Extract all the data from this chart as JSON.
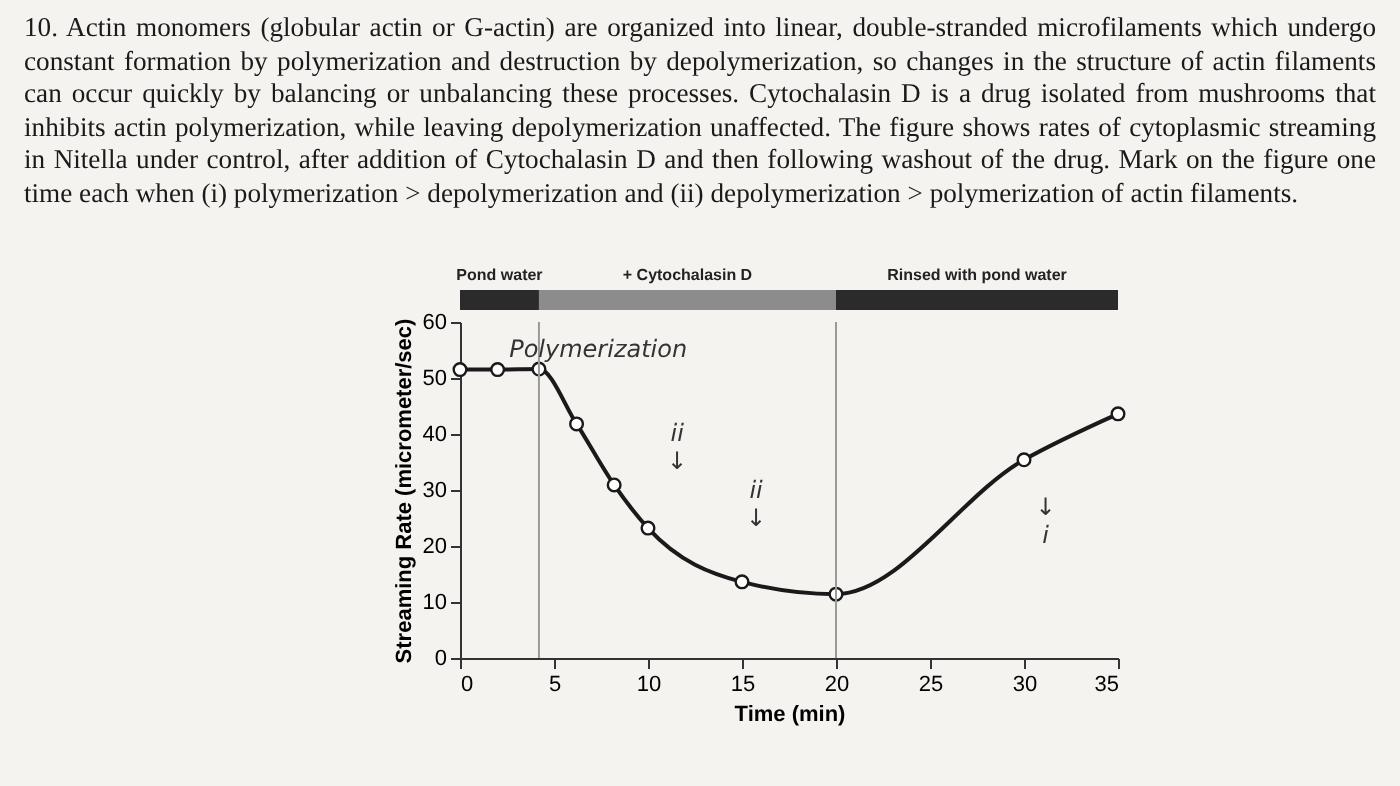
{
  "chart_data": {
    "type": "line",
    "title": "10. Actin monomers (globular actin or G-actin) are organized into linear, double-stranded microfilaments which undergo constant formation by polymerization and destruction by depolymerization, so changes in the structure of actin filaments can occur quickly by balancing or unbalancing these processes. Cytochalasin D is a drug isolated from mushrooms that inhibits actin polymerization, while leaving depolymerization unaffected. The figure shows rates of cytoplasmic streaming in Nitella under control, after addition of Cytochalasin D and then following washout of the drug. Mark on the figure one time each when (i) polymerization > depolymerization and (ii) depolymerization > polymerization of actin filaments.",
    "xlabel": "Time (min)",
    "ylabel": "Streaming Rate (micrometer/sec)",
    "x": [
      0,
      2,
      4.2,
      6.2,
      8.2,
      10,
      15,
      20,
      30,
      35
    ],
    "series": [
      {
        "color": "#1a1a1a",
        "values": [
          51.5,
          51.5,
          51.6,
          41.8,
          30.9,
          23.2,
          13.6,
          11.4,
          35.4,
          43.6
        ]
      }
    ],
    "xlim": [
      0,
      35
    ],
    "xticks": [
      0,
      5,
      10,
      15,
      20,
      25,
      30,
      35
    ],
    "ylim": [
      0,
      60
    ],
    "yticks": [
      0,
      10,
      20,
      30,
      40,
      50,
      60
    ],
    "marker": "circle",
    "line_style": "solid",
    "ref_lines": [
      {
        "axis": "x",
        "value": 4.2,
        "color": "#9a9a9a"
      },
      {
        "axis": "x",
        "value": 20,
        "color": "#9a9a9a"
      }
    ],
    "annotations": [
      "Pond water",
      "+ Cytochalasin D",
      "Rinsed with pond water",
      "Polymerization",
      "ii\n↓",
      "ii\n↓",
      "↓\ni"
    ]
  }
}
